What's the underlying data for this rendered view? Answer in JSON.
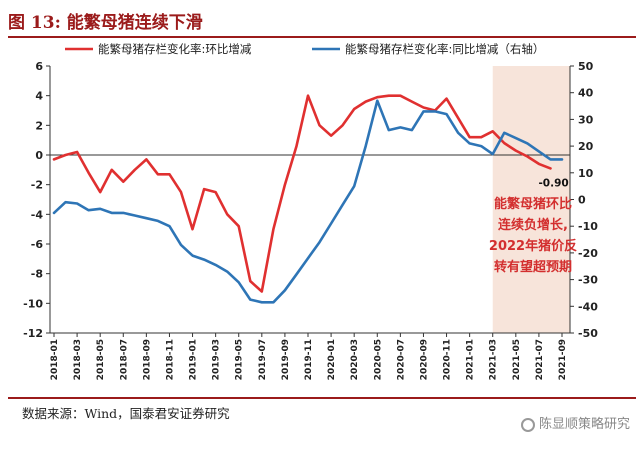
{
  "figure_title": "图 13:  能繁母猪连续下滑",
  "source": "数据来源：Wind，国泰君安证券研究",
  "watermark": "陈显顺策略研究",
  "annotation": [
    "能繁母猪环比",
    "连续负增长,",
    "2022年猪价反",
    "转有望超预期"
  ],
  "colors": {
    "red_series": "#e03030",
    "blue_series": "#2e75b6",
    "shade": "#f7e4da",
    "title": "#9b1b1b",
    "annotation": "#d32f2f"
  },
  "chart_data": {
    "type": "line",
    "legend_position": "top",
    "grid": false,
    "left_axis": {
      "ylim": [
        -12,
        6
      ],
      "ticks": [
        "6",
        "4",
        "2",
        "0",
        "-2",
        "-4",
        "-6",
        "-8",
        "-10",
        "-12"
      ]
    },
    "right_axis": {
      "ylim": [
        -50,
        50
      ],
      "ticks": [
        "50",
        "40",
        "30",
        "20",
        "10",
        "0",
        "-10",
        "-20",
        "-30",
        "-40",
        "-50"
      ]
    },
    "x_tick_labels": [
      "2018-01",
      "2018-03",
      "2018-05",
      "2018-07",
      "2018-09",
      "2018-11",
      "2019-01",
      "2019-03",
      "2019-05",
      "2019-07",
      "2019-09",
      "2019-11",
      "2020-01",
      "2020-03",
      "2020-05",
      "2020-07",
      "2020-09",
      "2020-11",
      "2021-01",
      "2021-03",
      "2021-05",
      "2021-07",
      "2021-09"
    ],
    "shaded_period": [
      "2021-03",
      "2021-09"
    ],
    "series": [
      {
        "name": "能繁母猪存栏变化率:环比增减",
        "axis": "left",
        "x": [
          "2018-01",
          "2018-02",
          "2018-03",
          "2018-04",
          "2018-05",
          "2018-06",
          "2018-07",
          "2018-08",
          "2018-09",
          "2018-10",
          "2018-11",
          "2018-12",
          "2019-01",
          "2019-02",
          "2019-03",
          "2019-04",
          "2019-05",
          "2019-06",
          "2019-07",
          "2019-08",
          "2019-09",
          "2019-10",
          "2019-11",
          "2019-12",
          "2020-01",
          "2020-02",
          "2020-03",
          "2020-04",
          "2020-05",
          "2020-06",
          "2020-07",
          "2020-08",
          "2020-09",
          "2020-10",
          "2020-11",
          "2020-12",
          "2021-01",
          "2021-02",
          "2021-03",
          "2021-04",
          "2021-05",
          "2021-06",
          "2021-07",
          "2021-08"
        ],
        "values": [
          -0.3,
          0.0,
          0.2,
          -1.2,
          -2.5,
          -1.0,
          -1.8,
          -1.0,
          -0.3,
          -1.3,
          -1.3,
          -2.5,
          -5.0,
          -2.3,
          -2.5,
          -4.0,
          -4.8,
          -8.5,
          -9.2,
          -5.0,
          -2.0,
          0.6,
          4.0,
          2.0,
          1.3,
          2.0,
          3.1,
          3.6,
          3.9,
          4.0,
          4.0,
          3.6,
          3.2,
          3.0,
          3.8,
          2.5,
          1.2,
          1.2,
          1.6,
          0.8,
          0.3,
          -0.1,
          -0.6,
          -0.9
        ],
        "end_label": "-0.90"
      },
      {
        "name": "能繁母猪存栏变化率:同比增减（右轴）",
        "axis": "right",
        "x": [
          "2018-01",
          "2018-02",
          "2018-03",
          "2018-04",
          "2018-05",
          "2018-06",
          "2018-07",
          "2018-08",
          "2018-09",
          "2018-10",
          "2018-11",
          "2018-12",
          "2019-01",
          "2019-02",
          "2019-03",
          "2019-04",
          "2019-05",
          "2019-06",
          "2019-07",
          "2019-08",
          "2019-09",
          "2019-10",
          "2019-11",
          "2019-12",
          "2020-01",
          "2020-02",
          "2020-03",
          "2020-04",
          "2020-05",
          "2020-06",
          "2020-07",
          "2020-08",
          "2020-09",
          "2020-10",
          "2020-11",
          "2020-12",
          "2021-01",
          "2021-02",
          "2021-03",
          "2021-04",
          "2021-05",
          "2021-06",
          "2021-07",
          "2021-08",
          "2021-09"
        ],
        "values": [
          -5,
          -1,
          -1.5,
          -4,
          -3.5,
          -5,
          -5,
          -6,
          -7,
          -8,
          -10,
          -17,
          -21,
          -22.5,
          -24.5,
          -27,
          -31,
          -37.5,
          -38.5,
          -38.5,
          -34,
          -28,
          -22,
          -16,
          -9,
          -2,
          5,
          20,
          37,
          26,
          27,
          26,
          33,
          33,
          32,
          25,
          21,
          20,
          17,
          25,
          23,
          21,
          18,
          15,
          15
        ]
      }
    ]
  }
}
